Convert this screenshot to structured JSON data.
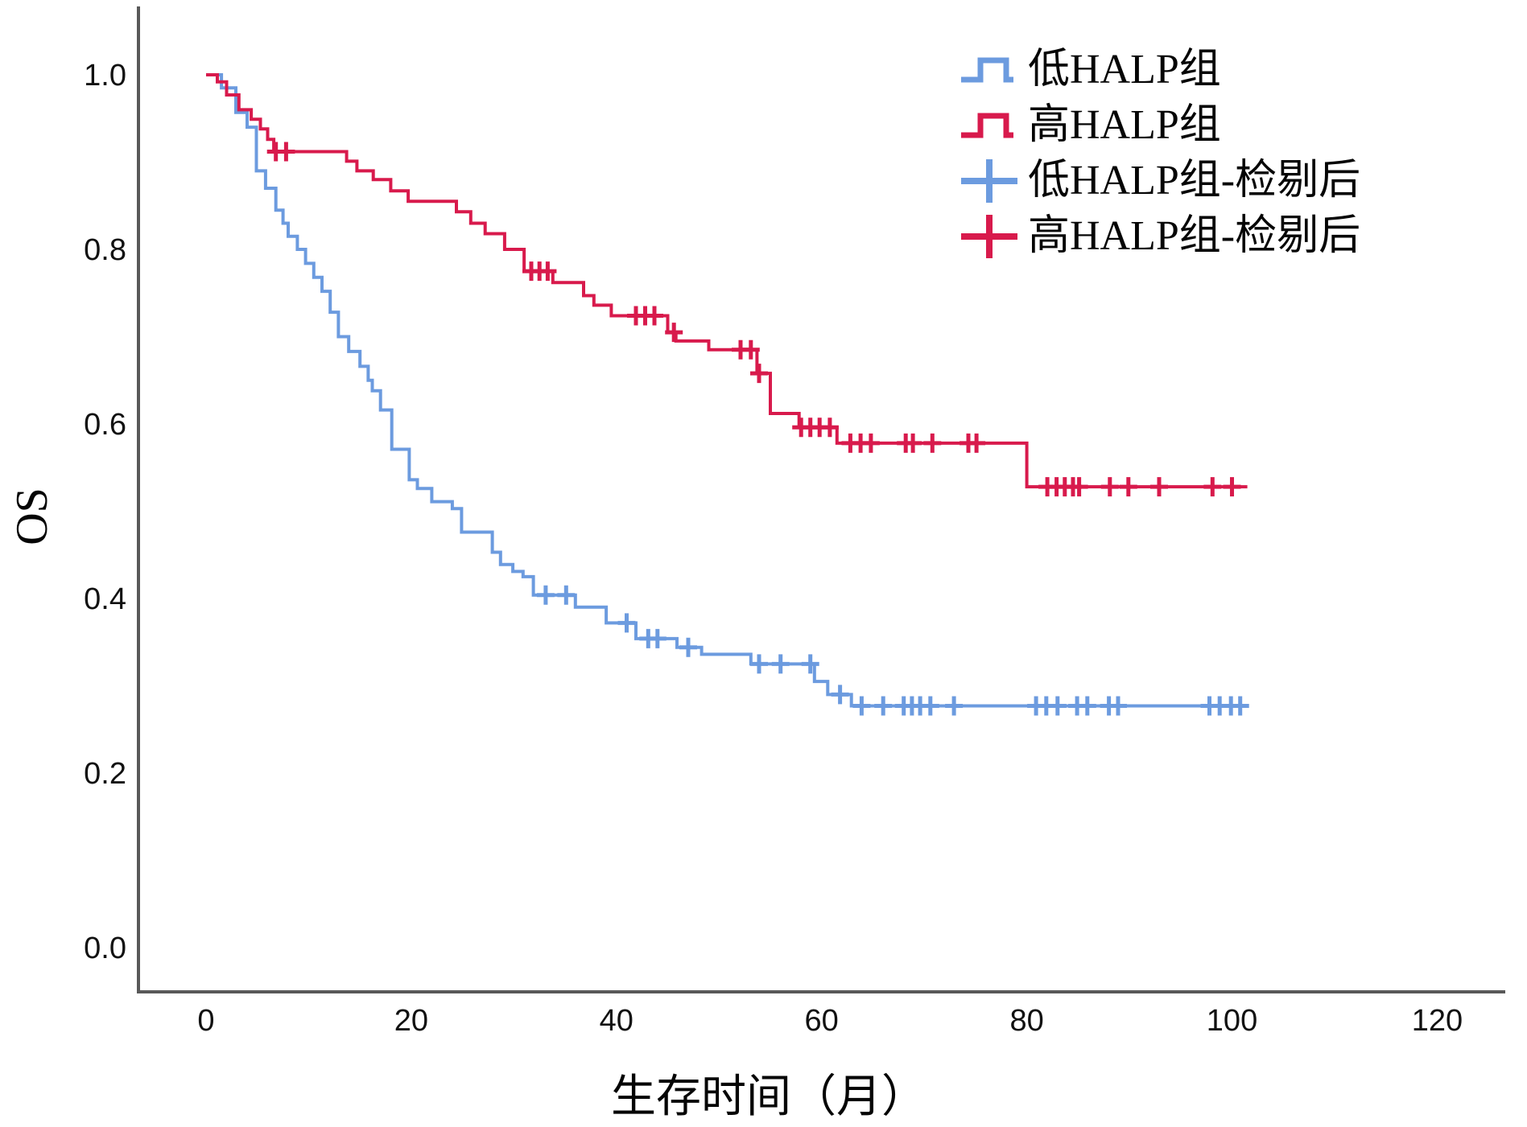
{
  "figure": {
    "background": "#ffffff",
    "axis_line_color": "#595959",
    "text_color": "#050505"
  },
  "y_axis": {
    "title": "OS",
    "tick_labels": [
      "1.0",
      "0.8",
      "0.6",
      "0.4",
      "0.2",
      "0.0"
    ],
    "tick_values": [
      1.0,
      0.8,
      0.6,
      0.4,
      0.2,
      0.0
    ]
  },
  "x_axis": {
    "title": "生存时间（月）",
    "tick_labels": [
      "0",
      "20",
      "40",
      "60",
      "80",
      "100",
      "120"
    ],
    "tick_values": [
      0,
      20,
      40,
      60,
      80,
      100,
      120
    ]
  },
  "legend": {
    "items": [
      {
        "label": "低HALP组",
        "marker": "step",
        "color": "#6C9BDF"
      },
      {
        "label": "高HALP组",
        "marker": "step",
        "color": "#D81A4C"
      },
      {
        "label": "低HALP组-检剔后",
        "marker": "plus",
        "color": "#6C9BDF"
      },
      {
        "label": "高HALP组-检剔后",
        "marker": "plus",
        "color": "#D81A4C"
      }
    ]
  },
  "chart_data": {
    "type": "line",
    "subtype": "kaplan-meier-step",
    "title": "",
    "xlabel": "生存时间（月）",
    "ylabel": "OS",
    "xlim": [
      0,
      120
    ],
    "ylim": [
      0.0,
      1.0
    ],
    "grid": false,
    "legend_position": "top-right",
    "series": [
      {
        "name": "低HALP组",
        "color": "#6C9BDF",
        "steps": [
          [
            0,
            1.0
          ],
          [
            1.5,
            0.985
          ],
          [
            2.9,
            0.957
          ],
          [
            4.0,
            0.94
          ],
          [
            4.9,
            0.89
          ],
          [
            5.8,
            0.87
          ],
          [
            6.8,
            0.845
          ],
          [
            7.5,
            0.83
          ],
          [
            8.0,
            0.815
          ],
          [
            8.9,
            0.8
          ],
          [
            9.7,
            0.784
          ],
          [
            10.5,
            0.768
          ],
          [
            11.3,
            0.752
          ],
          [
            12.1,
            0.728
          ],
          [
            12.9,
            0.7
          ],
          [
            13.9,
            0.683
          ],
          [
            15.0,
            0.666
          ],
          [
            15.8,
            0.65
          ],
          [
            16.2,
            0.638
          ],
          [
            17.0,
            0.616
          ],
          [
            18.1,
            0.571
          ],
          [
            19.8,
            0.536
          ],
          [
            20.6,
            0.526
          ],
          [
            22.0,
            0.511
          ],
          [
            24.0,
            0.503
          ],
          [
            24.9,
            0.476
          ],
          [
            27.9,
            0.453
          ],
          [
            28.7,
            0.439
          ],
          [
            29.9,
            0.431
          ],
          [
            30.9,
            0.425
          ],
          [
            31.9,
            0.404
          ],
          [
            36.0,
            0.39
          ],
          [
            39.0,
            0.372
          ],
          [
            41.9,
            0.354
          ],
          [
            45.9,
            0.344
          ],
          [
            48.3,
            0.336
          ],
          [
            53.1,
            0.325
          ],
          [
            59.3,
            0.305
          ],
          [
            60.6,
            0.29
          ],
          [
            62.9,
            0.277
          ],
          [
            101.5,
            0.277
          ]
        ],
        "censored_months": [
          33.1,
          35.1,
          41.0,
          43.1,
          44.0,
          47.0,
          53.9,
          56.0,
          58.9,
          61.8,
          63.9,
          66.0,
          68.0,
          68.8,
          69.6,
          70.6,
          72.9,
          80.9,
          81.9,
          83.0,
          84.9,
          85.9,
          88.0,
          88.9,
          97.8,
          98.8,
          99.9,
          100.8
        ]
      },
      {
        "name": "高HALP组",
        "color": "#D81A4C",
        "steps": [
          [
            0,
            1.0
          ],
          [
            1.1,
            0.992
          ],
          [
            2.0,
            0.977
          ],
          [
            3.2,
            0.96
          ],
          [
            4.4,
            0.949
          ],
          [
            5.3,
            0.938
          ],
          [
            6.0,
            0.926
          ],
          [
            6.6,
            0.912
          ],
          [
            13.7,
            0.901
          ],
          [
            14.7,
            0.89
          ],
          [
            16.3,
            0.88
          ],
          [
            18.0,
            0.867
          ],
          [
            19.7,
            0.855
          ],
          [
            24.4,
            0.843
          ],
          [
            25.8,
            0.83
          ],
          [
            27.2,
            0.818
          ],
          [
            29.1,
            0.8
          ],
          [
            31.0,
            0.775
          ],
          [
            33.8,
            0.762
          ],
          [
            36.8,
            0.747
          ],
          [
            37.8,
            0.736
          ],
          [
            39.5,
            0.724
          ],
          [
            45.0,
            0.705
          ],
          [
            45.8,
            0.695
          ],
          [
            49.0,
            0.685
          ],
          [
            53.7,
            0.658
          ],
          [
            55.0,
            0.612
          ],
          [
            57.8,
            0.596
          ],
          [
            61.5,
            0.578
          ],
          [
            80.0,
            0.528
          ],
          [
            101.5,
            0.528
          ]
        ],
        "censored_months": [
          6.8,
          7.8,
          31.7,
          32.5,
          33.3,
          41.9,
          42.8,
          43.7,
          45.6,
          52.1,
          53.1,
          53.9,
          58.0,
          58.9,
          59.8,
          60.8,
          62.8,
          63.8,
          64.8,
          68.2,
          68.9,
          70.8,
          74.3,
          75.1,
          82.0,
          82.9,
          83.7,
          84.5,
          85.1,
          88.1,
          89.9,
          92.9,
          98.1,
          100.0
        ]
      }
    ]
  }
}
